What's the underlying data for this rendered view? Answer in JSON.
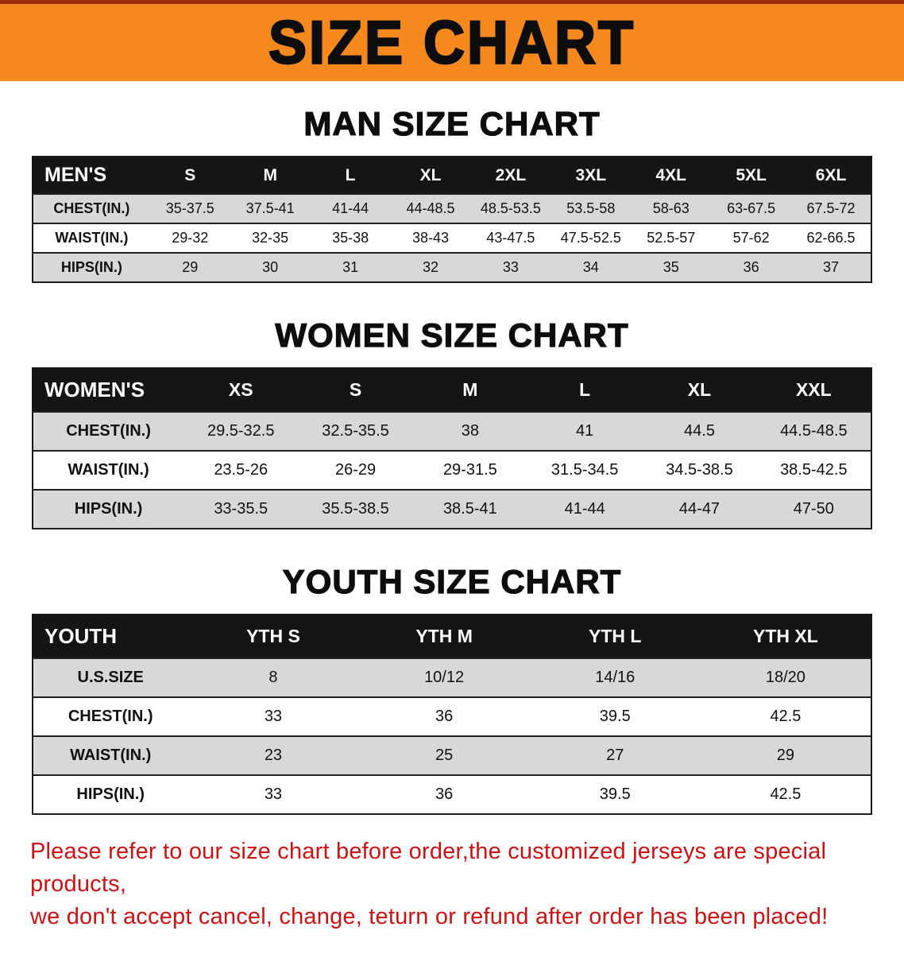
{
  "banner": {
    "title": "SIZE CHART"
  },
  "colors": {
    "banner_bg": "#F6891E",
    "banner_top_strip": "#9C2D0A",
    "table_header_bg": "#151515",
    "row_stripe": "#D8D8D8",
    "disclaimer_red": "#CE1212"
  },
  "sections": [
    {
      "id": "men",
      "heading": "MAN SIZE CHART",
      "table": {
        "header": [
          "MEN'S",
          "S",
          "M",
          "L",
          "XL",
          "2XL",
          "3XL",
          "4XL",
          "5XL",
          "6XL"
        ],
        "rows": [
          [
            "CHEST(IN.)",
            "35-37.5",
            "37.5-41",
            "41-44",
            "44-48.5",
            "48.5-53.5",
            "53.5-58",
            "58-63",
            "63-67.5",
            "67.5-72"
          ],
          [
            "WAIST(IN.)",
            "29-32",
            "32-35",
            "35-38",
            "38-43",
            "43-47.5",
            "47.5-52.5",
            "52.5-57",
            "57-62",
            "62-66.5"
          ],
          [
            "HIPS(IN.)",
            "29",
            "30",
            "31",
            "32",
            "33",
            "34",
            "35",
            "36",
            "37"
          ]
        ]
      }
    },
    {
      "id": "women",
      "heading": "WOMEN SIZE CHART",
      "table": {
        "header": [
          "WOMEN'S",
          "XS",
          "S",
          "M",
          "L",
          "XL",
          "XXL"
        ],
        "rows": [
          [
            "CHEST(IN.)",
            "29.5-32.5",
            "32.5-35.5",
            "38",
            "41",
            "44.5",
            "44.5-48.5"
          ],
          [
            "WAIST(IN.)",
            "23.5-26",
            "26-29",
            "29-31.5",
            "31.5-34.5",
            "34.5-38.5",
            "38.5-42.5"
          ],
          [
            "HIPS(IN.)",
            "33-35.5",
            "35.5-38.5",
            "38.5-41",
            "41-44",
            "44-47",
            "47-50"
          ]
        ]
      }
    },
    {
      "id": "youth",
      "heading": "YOUTH SIZE CHART",
      "table": {
        "header": [
          "YOUTH",
          "YTH S",
          "YTH M",
          "YTH L",
          "YTH XL"
        ],
        "rows": [
          [
            "U.S.SIZE",
            "8",
            "10/12",
            "14/16",
            "18/20"
          ],
          [
            "CHEST(IN.)",
            "33",
            "36",
            "39.5",
            "42.5"
          ],
          [
            "WAIST(IN.)",
            "23",
            "25",
            "27",
            "29"
          ],
          [
            "HIPS(IN.)",
            "33",
            "36",
            "39.5",
            "42.5"
          ]
        ]
      }
    }
  ],
  "disclaimer": {
    "lines": [
      "Please refer to our size chart before order,the customized jerseys are special products,",
      "we don't accept cancel, change, teturn or refund after order has been placed!"
    ]
  }
}
